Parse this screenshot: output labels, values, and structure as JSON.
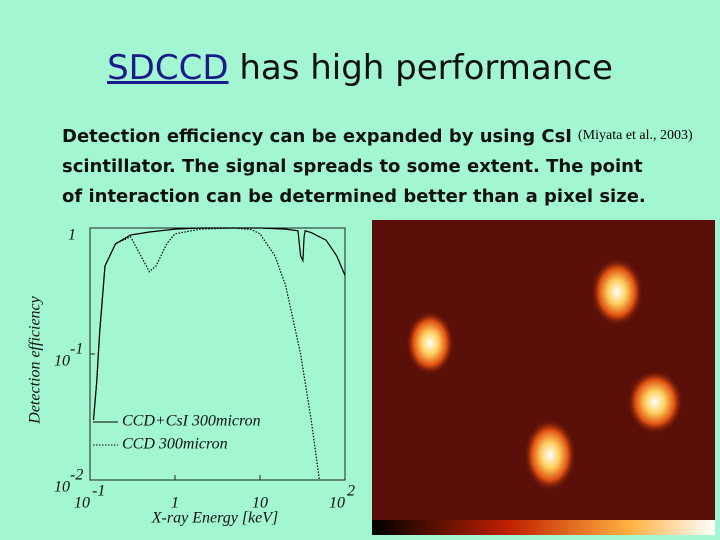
{
  "slide": {
    "title_link": "SDCCD",
    "title_rest": "has high performance",
    "body": [
      "Detection efficiency can be expanded by using CsI",
      "scintillator.  The signal spreads to some extent.  The point",
      "of interaction can be determined better than a pixel size."
    ],
    "citation": "(Miyata et al., 2003)"
  },
  "chart_data": {
    "type": "line",
    "log_x": true,
    "log_y": true,
    "x_label": "X-ray Energy [keV]",
    "y_label": "Detection efficiency",
    "xlim": [
      0.1,
      100
    ],
    "ylim": [
      0.01,
      1
    ],
    "xticks": [
      {
        "value": 0.1,
        "label": "10",
        "sup": "-1"
      },
      1,
      10,
      {
        "value": 100,
        "label": "10",
        "sup": "2"
      }
    ],
    "yticks": [
      {
        "value": 0.01,
        "label": "10",
        "sup": "-2"
      },
      {
        "value": 0.1,
        "label": "10",
        "sup": "-1"
      },
      1
    ],
    "series": [
      {
        "name": "CCD+CsI 300micron",
        "color": "#000000",
        "style": "solid",
        "x": [
          0.11,
          0.12,
          0.13,
          0.15,
          0.2,
          0.3,
          0.5,
          1,
          2,
          5,
          10,
          20,
          28,
          30,
          32,
          33,
          34,
          40,
          60,
          80,
          100
        ],
        "values": [
          0.03,
          0.06,
          0.15,
          0.5,
          0.75,
          0.88,
          0.93,
          0.98,
          1,
          1,
          1,
          0.98,
          0.95,
          0.6,
          0.55,
          0.85,
          0.95,
          0.92,
          0.8,
          0.6,
          0.42
        ]
      },
      {
        "name": "CCD 300micron",
        "color": "#000000",
        "style": "dotted",
        "x": [
          0.11,
          0.12,
          0.13,
          0.15,
          0.2,
          0.3,
          0.5,
          0.6,
          0.8,
          1,
          2,
          5,
          8,
          10,
          15,
          20,
          30,
          40,
          50
        ],
        "values": [
          0.03,
          0.06,
          0.15,
          0.5,
          0.75,
          0.85,
          0.45,
          0.5,
          0.75,
          0.9,
          0.98,
          1,
          0.97,
          0.9,
          0.6,
          0.35,
          0.1,
          0.03,
          0.01
        ]
      }
    ]
  }
}
